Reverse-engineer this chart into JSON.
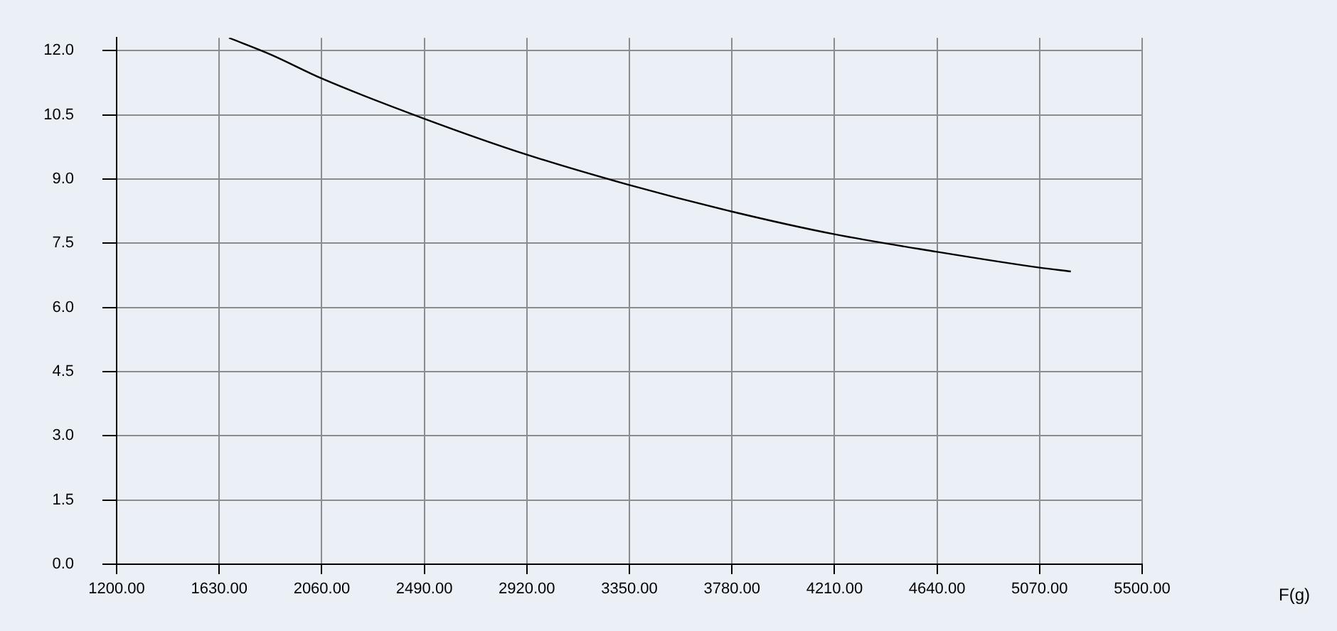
{
  "chart_data": {
    "type": "line",
    "annotations": [
      "F(g)"
    ],
    "x": [
      1671,
      1850,
      2060,
      2490,
      2920,
      3350,
      3780,
      4210,
      4640,
      5070,
      5201
    ],
    "series": [
      {
        "color": "#000000",
        "values": [
          12.3,
          11.9,
          11.35,
          10.41,
          9.57,
          8.86,
          8.24,
          7.71,
          7.3,
          6.93,
          6.84
        ]
      }
    ],
    "xlim": [
      1200,
      5500
    ],
    "xticks": [
      {
        "value": 1200,
        "label": "1200.00"
      },
      {
        "value": 1630,
        "label": "1630.00"
      },
      {
        "value": 2060,
        "label": "2060.00"
      },
      {
        "value": 2490,
        "label": "2490.00"
      },
      {
        "value": 2920,
        "label": "2920.00"
      },
      {
        "value": 3350,
        "label": "3350.00"
      },
      {
        "value": 3780,
        "label": "3780.00"
      },
      {
        "value": 4210,
        "label": "4210.00"
      },
      {
        "value": 4640,
        "label": "4640.00"
      },
      {
        "value": 5070,
        "label": "5070.00"
      },
      {
        "value": 5500,
        "label": "5500.00"
      }
    ],
    "ylim": [
      0,
      12.3
    ],
    "yticks": [
      {
        "value": 0,
        "label": "0.0"
      },
      {
        "value": 1.5,
        "label": "1.5"
      },
      {
        "value": 3,
        "label": "3.0"
      },
      {
        "value": 4.5,
        "label": "4.5"
      },
      {
        "value": 6,
        "label": "6.0"
      },
      {
        "value": 7.5,
        "label": "7.5"
      },
      {
        "value": 9,
        "label": "9.0"
      },
      {
        "value": 10.5,
        "label": "10.5"
      },
      {
        "value": 12,
        "label": "12.0"
      }
    ],
    "grid": true,
    "marker": "none",
    "line_style": "solid",
    "legend": false
  }
}
